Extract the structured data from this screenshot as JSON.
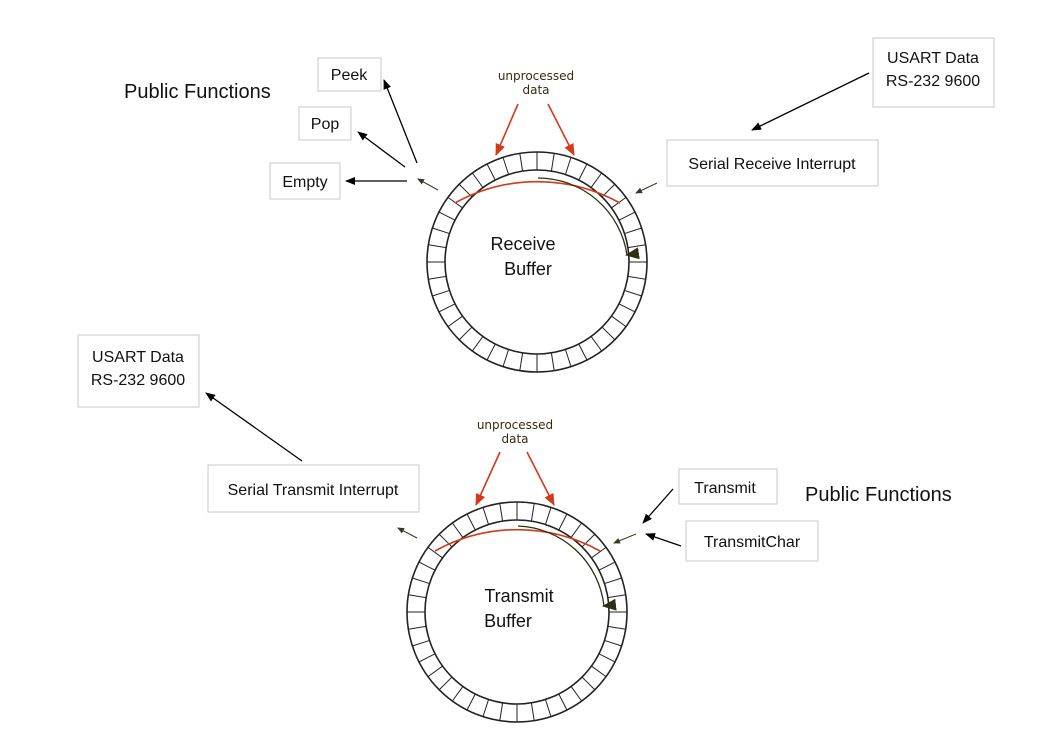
{
  "receive": {
    "public_functions_label": "Public Functions",
    "peek": "Peek",
    "pop": "Pop",
    "empty": "Empty",
    "buffer_line1": "Receive",
    "buffer_line2": "Buffer",
    "unprocessed_line1": "unprocessed",
    "unprocessed_line2": "data",
    "interrupt": "Serial Receive Interrupt",
    "usart_line1": "USART Data",
    "usart_line2": "RS-232 9600"
  },
  "transmit": {
    "usart_line1": "USART Data",
    "usart_line2": "RS-232 9600",
    "interrupt": "Serial Transmit Interrupt",
    "unprocessed_line1": "unprocessed",
    "unprocessed_line2": "data",
    "buffer_line1": "Transmit",
    "buffer_line2": "Buffer",
    "transmit": "Transmit",
    "transmit_char": "TransmitChar",
    "public_functions_label": "Public Functions"
  },
  "colors": {
    "accent_red": "#d23a1a",
    "ring_stroke": "#222222",
    "box_border": "#c8c8c8"
  }
}
